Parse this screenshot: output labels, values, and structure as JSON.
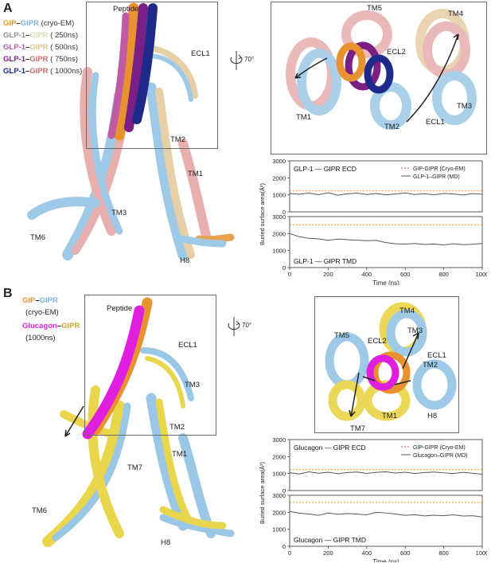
{
  "panel_a": {
    "letter": "A",
    "legend": [
      {
        "left": "GIP",
        "right": "GIPR",
        "note": "(cryo-EM)",
        "left_color": "#e8922f",
        "right_color": "#7fb3d8"
      },
      {
        "left": "GLP-1",
        "right": "GIPR",
        "note": "( 250ns)",
        "left_color": "#8f8f8f",
        "right_color": "#cfe0b4"
      },
      {
        "left": "GLP-1",
        "right": "GIPR",
        "note": "( 500ns)",
        "left_color": "#c05aa4",
        "right_color": "#e2c08a"
      },
      {
        "left": "GLP-1",
        "right": "GIPR",
        "note": "( 750ns)",
        "left_color": "#7a1f83",
        "right_color": "#c87070"
      },
      {
        "left": "GLP-1",
        "right": "GIPR",
        "note": "( 1000ns)",
        "left_color": "#1e2a8a",
        "right_color": "#c87070"
      }
    ],
    "rotation": "70°",
    "labels": {
      "peptide": "Peptide",
      "ecl1": "ECL1",
      "tm2": "TM2",
      "tm1": "TM1",
      "tm3": "TM3",
      "tm6": "TM6",
      "h8": "H8",
      "zoom_tm5": "TM5",
      "zoom_tm4": "TM4",
      "zoom_ecl2": "ECL2",
      "zoom_tm1": "TM1",
      "zoom_tm2": "TM2",
      "zoom_ecl1": "ECL1",
      "zoom_tm3": "TM3"
    },
    "chart_ylabel": "Buried surface area(Å²)",
    "chart_xlabel": "Time (ns)"
  },
  "panel_b": {
    "letter": "B",
    "legend": [
      {
        "left": "GIP",
        "right": "GIPR",
        "left_color": "#e8922f",
        "right_color": "#7fb3d8"
      },
      {
        "note": "(cryo-EM)"
      },
      {
        "left": "Glucagon",
        "right": "GIPR",
        "left_color": "#e01ee0",
        "right_color": "#c8a82a"
      },
      {
        "note": "(1000ns)"
      }
    ],
    "rotation": "70°",
    "labels": {
      "peptide": "Peptide",
      "ecl1": "ECL1",
      "tm3": "TM3",
      "tm2": "TM2",
      "tm1": "TM1",
      "tm7": "TM7",
      "tm6": "TM6",
      "h8": "H8",
      "zoom_tm4": "TM4",
      "zoom_tm3": "TM3",
      "zoom_tm5": "TM5",
      "zoom_ecl2": "ECL2",
      "zoom_ecl1": "ECL1",
      "zoom_tm2": "TM2",
      "zoom_tm1": "TM1",
      "zoom_h8": "H8",
      "zoom_tm7": "TM7"
    },
    "chart_ylabel": "Buried surface area(Å²)",
    "chart_xlabel": "Time (ns)"
  },
  "colors": {
    "cryo_line": "#f08a2a",
    "md_line": "#555555",
    "helix_blue": "#8ec1e3",
    "helix_tan": "#e3c89a",
    "helix_pink": "#e4a2a2",
    "helix_yellow": "#e8d23a"
  },
  "chart_data": [
    {
      "type": "line",
      "panel": "A",
      "title": "GLP-1 — GIPR ECD",
      "legend": [
        "GIP-GIPR (Cryo-EM)",
        "GLP-1–GIPR (MD)"
      ],
      "x_range": [
        0,
        1000
      ],
      "ylim": [
        0,
        3000
      ],
      "yticks": [
        "0",
        "1000",
        "2000",
        "3000"
      ],
      "xticks": [],
      "cryo_value": 1230,
      "series": [
        {
          "name": "GLP-1–GIPR (MD)",
          "x": [
            0,
            50,
            100,
            150,
            200,
            250,
            300,
            350,
            400,
            450,
            500,
            550,
            600,
            650,
            700,
            750,
            800,
            850,
            900,
            950,
            1000
          ],
          "y": [
            1080,
            1040,
            1100,
            1010,
            1120,
            980,
            1060,
            1100,
            1020,
            1080,
            1000,
            1050,
            1110,
            1020,
            1060,
            1000,
            1080,
            1050,
            990,
            1070,
            1030
          ]
        }
      ]
    },
    {
      "type": "line",
      "panel": "A",
      "title": "GLP-1 — GIPR TMD",
      "legend": [],
      "x_range": [
        0,
        1000
      ],
      "ylim": [
        0,
        3000
      ],
      "yticks": [
        "0",
        "1000",
        "2000",
        "3000"
      ],
      "xticks": [
        "0",
        "200",
        "400",
        "600",
        "800",
        "1000"
      ],
      "cryo_value": 2520,
      "series": [
        {
          "name": "GLP-1–GIPR (MD)",
          "x": [
            0,
            50,
            100,
            150,
            200,
            250,
            300,
            350,
            400,
            450,
            500,
            550,
            600,
            650,
            700,
            750,
            800,
            850,
            900,
            950,
            1000
          ],
          "y": [
            2000,
            1820,
            1720,
            1690,
            1600,
            1680,
            1640,
            1610,
            1580,
            1600,
            1470,
            1400,
            1380,
            1420,
            1360,
            1390,
            1330,
            1400,
            1350,
            1370,
            1420
          ]
        }
      ]
    },
    {
      "type": "line",
      "panel": "B",
      "title": "Glucagon — GIPR ECD",
      "legend": [
        "GIP-GIPR (Cryo-EM)",
        "Glucagon–GIPR (MD)"
      ],
      "x_range": [
        0,
        1000
      ],
      "ylim": [
        0,
        3000
      ],
      "yticks": [
        "0",
        "1000",
        "2000",
        "3000"
      ],
      "xticks": [],
      "cryo_value": 1230,
      "series": [
        {
          "name": "Glucagon–GIPR (MD)",
          "x": [
            0,
            50,
            100,
            150,
            200,
            250,
            300,
            350,
            400,
            450,
            500,
            550,
            600,
            650,
            700,
            750,
            800,
            850,
            900,
            950,
            1000
          ],
          "y": [
            1050,
            980,
            1100,
            1020,
            1080,
            990,
            1060,
            1090,
            1010,
            1070,
            1100,
            1030,
            1080,
            1000,
            1060,
            1090,
            1040,
            1000,
            1070,
            1020,
            960
          ]
        }
      ]
    },
    {
      "type": "line",
      "panel": "B",
      "title": "Glucagon — GIPR TMD",
      "legend": [],
      "x_range": [
        0,
        1000
      ],
      "ylim": [
        0,
        3000
      ],
      "yticks": [
        "0",
        "1000",
        "2000",
        "3000"
      ],
      "xticks": [
        "0",
        "200",
        "400",
        "600",
        "800",
        "1000"
      ],
      "cryo_value": 2580,
      "series": [
        {
          "name": "Glucagon–GIPR (MD)",
          "x": [
            0,
            50,
            100,
            150,
            200,
            250,
            300,
            350,
            400,
            450,
            500,
            550,
            600,
            650,
            700,
            750,
            800,
            850,
            900,
            950,
            1000
          ],
          "y": [
            2050,
            1950,
            1900,
            1820,
            1960,
            1880,
            1930,
            1890,
            1850,
            2000,
            1960,
            1900,
            1820,
            1860,
            1790,
            1830,
            1800,
            1850,
            1780,
            1800,
            1720
          ]
        }
      ]
    }
  ]
}
